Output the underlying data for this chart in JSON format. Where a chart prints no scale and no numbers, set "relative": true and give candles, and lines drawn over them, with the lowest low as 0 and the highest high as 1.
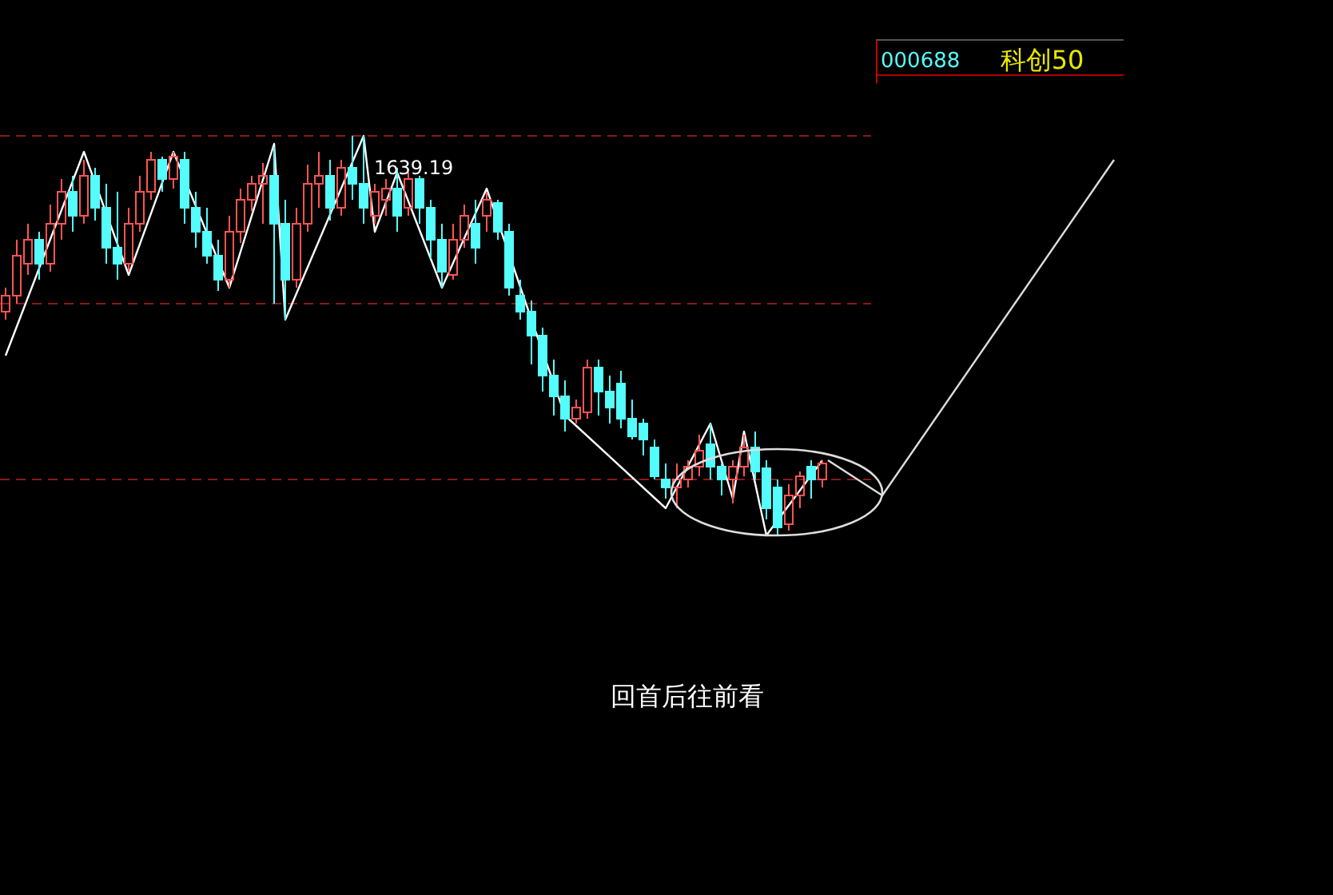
{
  "chart_data": {
    "type": "candlestick",
    "relative": true,
    "grid": false,
    "categories": [
      null,
      null,
      null,
      null,
      null,
      null,
      null,
      null,
      null,
      null,
      null,
      null,
      null,
      null,
      null,
      null,
      null,
      null,
      null,
      null,
      null,
      null,
      null,
      null,
      null,
      null,
      null,
      null,
      null,
      null,
      null,
      null,
      null,
      null,
      null,
      null,
      null,
      null,
      null,
      null,
      null,
      null,
      null,
      null,
      null,
      null,
      null,
      null,
      null,
      null,
      null,
      null,
      null,
      null,
      null,
      null,
      null,
      null,
      null,
      null,
      null,
      null,
      null,
      null,
      null,
      null,
      null,
      null,
      null,
      null,
      null,
      null,
      null,
      null
    ],
    "ohlc": [
      [
        0.56,
        0.62,
        0.54,
        0.6
      ],
      [
        0.6,
        0.74,
        0.58,
        0.7
      ],
      [
        0.68,
        0.78,
        0.652,
        0.74
      ],
      [
        0.74,
        0.76,
        0.64,
        0.68
      ],
      [
        0.68,
        0.828,
        0.66,
        0.78
      ],
      [
        0.78,
        0.892,
        0.74,
        0.86
      ],
      [
        0.86,
        0.9,
        0.76,
        0.8
      ],
      [
        0.8,
        0.94,
        0.78,
        0.9
      ],
      [
        0.9,
        0.92,
        0.788,
        0.82
      ],
      [
        0.82,
        0.88,
        0.68,
        0.72
      ],
      [
        0.72,
        0.86,
        0.64,
        0.68
      ],
      [
        0.68,
        0.82,
        0.66,
        0.78
      ],
      [
        0.78,
        0.9,
        0.76,
        0.86
      ],
      [
        0.86,
        0.96,
        0.84,
        0.94
      ],
      [
        0.94,
        0.948,
        0.86,
        0.892
      ],
      [
        0.892,
        0.96,
        0.868,
        0.948
      ],
      [
        0.94,
        0.96,
        0.78,
        0.82
      ],
      [
        0.82,
        0.86,
        0.72,
        0.76
      ],
      [
        0.76,
        0.82,
        0.68,
        0.7
      ],
      [
        0.7,
        0.74,
        0.612,
        0.64
      ],
      [
        0.64,
        0.8,
        0.62,
        0.76
      ],
      [
        0.76,
        0.868,
        0.732,
        0.84
      ],
      [
        0.84,
        0.9,
        0.812,
        0.88
      ],
      [
        0.88,
        0.932,
        0.78,
        0.9
      ],
      [
        0.9,
        0.972,
        0.58,
        0.78
      ],
      [
        0.78,
        0.84,
        0.54,
        0.64
      ],
      [
        0.64,
        0.82,
        0.62,
        0.78
      ],
      [
        0.78,
        0.928,
        0.76,
        0.88
      ],
      [
        0.88,
        0.96,
        0.82,
        0.9
      ],
      [
        0.9,
        0.94,
        0.788,
        0.82
      ],
      [
        0.82,
        0.94,
        0.8,
        0.92
      ],
      [
        0.92,
        1,
        0.84,
        0.88
      ],
      [
        0.88,
        1,
        0.78,
        0.82
      ],
      [
        0.8,
        0.88,
        0.78,
        0.86
      ],
      [
        0.84,
        0.892,
        0.8,
        0.868
      ],
      [
        0.868,
        0.92,
        0.76,
        0.8
      ],
      [
        0.82,
        0.908,
        0.8,
        0.892
      ],
      [
        0.892,
        0.9,
        0.78,
        0.82
      ],
      [
        0.82,
        0.84,
        0.692,
        0.74
      ],
      [
        0.74,
        0.78,
        0.62,
        0.66
      ],
      [
        0.652,
        0.78,
        0.64,
        0.74
      ],
      [
        0.74,
        0.828,
        0.72,
        0.8
      ],
      [
        0.78,
        0.84,
        0.68,
        0.72
      ],
      [
        0.8,
        0.86,
        0.76,
        0.84
      ],
      [
        0.832,
        0.84,
        0.74,
        0.76
      ],
      [
        0.76,
        0.78,
        0.6,
        0.62
      ],
      [
        0.6,
        0.64,
        0.54,
        0.56
      ],
      [
        0.56,
        0.588,
        0.428,
        0.5
      ],
      [
        0.5,
        0.52,
        0.36,
        0.4
      ],
      [
        0.4,
        0.44,
        0.3,
        0.348
      ],
      [
        0.348,
        0.388,
        0.26,
        0.292
      ],
      [
        0.292,
        0.34,
        0.28,
        0.32
      ],
      [
        0.308,
        0.44,
        0.292,
        0.42
      ],
      [
        0.42,
        0.44,
        0.3,
        0.36
      ],
      [
        0.36,
        0.4,
        0.28,
        0.32
      ],
      [
        0.38,
        0.412,
        0.268,
        0.292
      ],
      [
        0.292,
        0.34,
        0.24,
        0.248
      ],
      [
        0.28,
        0.292,
        0.2,
        0.24
      ],
      [
        0.22,
        0.24,
        0.14,
        0.148
      ],
      [
        0.14,
        0.18,
        0.092,
        0.12
      ],
      [
        0.12,
        0.18,
        0.068,
        0.14
      ],
      [
        0.14,
        0.188,
        0.12,
        0.172
      ],
      [
        0.172,
        0.252,
        0.148,
        0.212
      ],
      [
        0.228,
        0.28,
        0.14,
        0.172
      ],
      [
        0.172,
        0.18,
        0.1,
        0.14
      ],
      [
        0.14,
        0.188,
        0.08,
        0.172
      ],
      [
        0.172,
        0.252,
        0.148,
        0.22
      ],
      [
        0.22,
        0.26,
        0.14,
        0.16
      ],
      [
        0.168,
        0.188,
        0.04,
        0.068
      ],
      [
        0.12,
        0.14,
        0,
        0.02
      ],
      [
        0.028,
        0.128,
        0.012,
        0.1
      ],
      [
        0.1,
        0.16,
        0.068,
        0.148
      ],
      [
        0.172,
        0.188,
        0.092,
        0.14
      ],
      [
        0.14,
        0.188,
        0.12,
        0.18
      ]
    ],
    "colors": [
      "#ff5454",
      "#ff5454",
      "#ff5454",
      "#54fcfc",
      "#ff5454",
      "#ff5454",
      "#54fcfc",
      "#ff5454",
      "#54fcfc",
      "#54fcfc",
      "#54fcfc",
      "#ff5454",
      "#ff5454",
      "#ff5454",
      "#54fcfc",
      "#ff5454",
      "#54fcfc",
      "#54fcfc",
      "#54fcfc",
      "#54fcfc",
      "#ff5454",
      "#ff5454",
      "#ff5454",
      "#ff5454",
      "#54fcfc",
      "#54fcfc",
      "#ff5454",
      "#ff5454",
      "#ff5454",
      "#54fcfc",
      "#ff5454",
      "#54fcfc",
      "#54fcfc",
      "#ff5454",
      "#ff5454",
      "#54fcfc",
      "#ff5454",
      "#54fcfc",
      "#54fcfc",
      "#54fcfc",
      "#ff5454",
      "#ff5454",
      "#54fcfc",
      "#ff5454",
      "#54fcfc",
      "#54fcfc",
      "#54fcfc",
      "#54fcfc",
      "#54fcfc",
      "#54fcfc",
      "#54fcfc",
      "#ff5454",
      "#ff5454",
      "#54fcfc",
      "#54fcfc",
      "#54fcfc",
      "#54fcfc",
      "#54fcfc",
      "#54fcfc",
      "#54fcfc",
      "#ff5454",
      "#ff5454",
      "#ff5454",
      "#54fcfc",
      "#54fcfc",
      "#ff5454",
      "#ff5454",
      "#54fcfc",
      "#54fcfc",
      "#54fcfc",
      "#ff5454",
      "#ff5454",
      "#54fcfc",
      "#ff5454"
    ],
    "series": [
      {
        "type": "line",
        "color": "#ffffff",
        "values": [
          0.45,
          null,
          null,
          null,
          null,
          null,
          null,
          0.96,
          null,
          null,
          null,
          0.652,
          null,
          null,
          null,
          0.96,
          null,
          null,
          null,
          null,
          0.62,
          null,
          null,
          null,
          0.98,
          0.54,
          null,
          null,
          null,
          null,
          null,
          null,
          1,
          0.76,
          null,
          0.908,
          null,
          null,
          null,
          0.62,
          null,
          null,
          null,
          0.868,
          null,
          null,
          null,
          0.54,
          null,
          null,
          0.3,
          null,
          null,
          null,
          null,
          null,
          null,
          null,
          null,
          0.068,
          null,
          null,
          null,
          0.28,
          null,
          0.092,
          0.26,
          null,
          0,
          null,
          null,
          null,
          null,
          0.188
        ]
      }
    ],
    "ref_lines": [
      {
        "axis": "y",
        "value": 1,
        "color": "#8b1a1a",
        "line_style": "dashed"
      },
      {
        "axis": "y",
        "value": 0.58,
        "color": "#8b1a1a",
        "line_style": "dashed"
      },
      {
        "axis": "y",
        "value": 0.14,
        "color": "#8b1a1a",
        "line_style": "dashed"
      }
    ],
    "annotations": [
      "1639.19",
      "000688",
      "科创50",
      "回首后往前看"
    ]
  }
}
